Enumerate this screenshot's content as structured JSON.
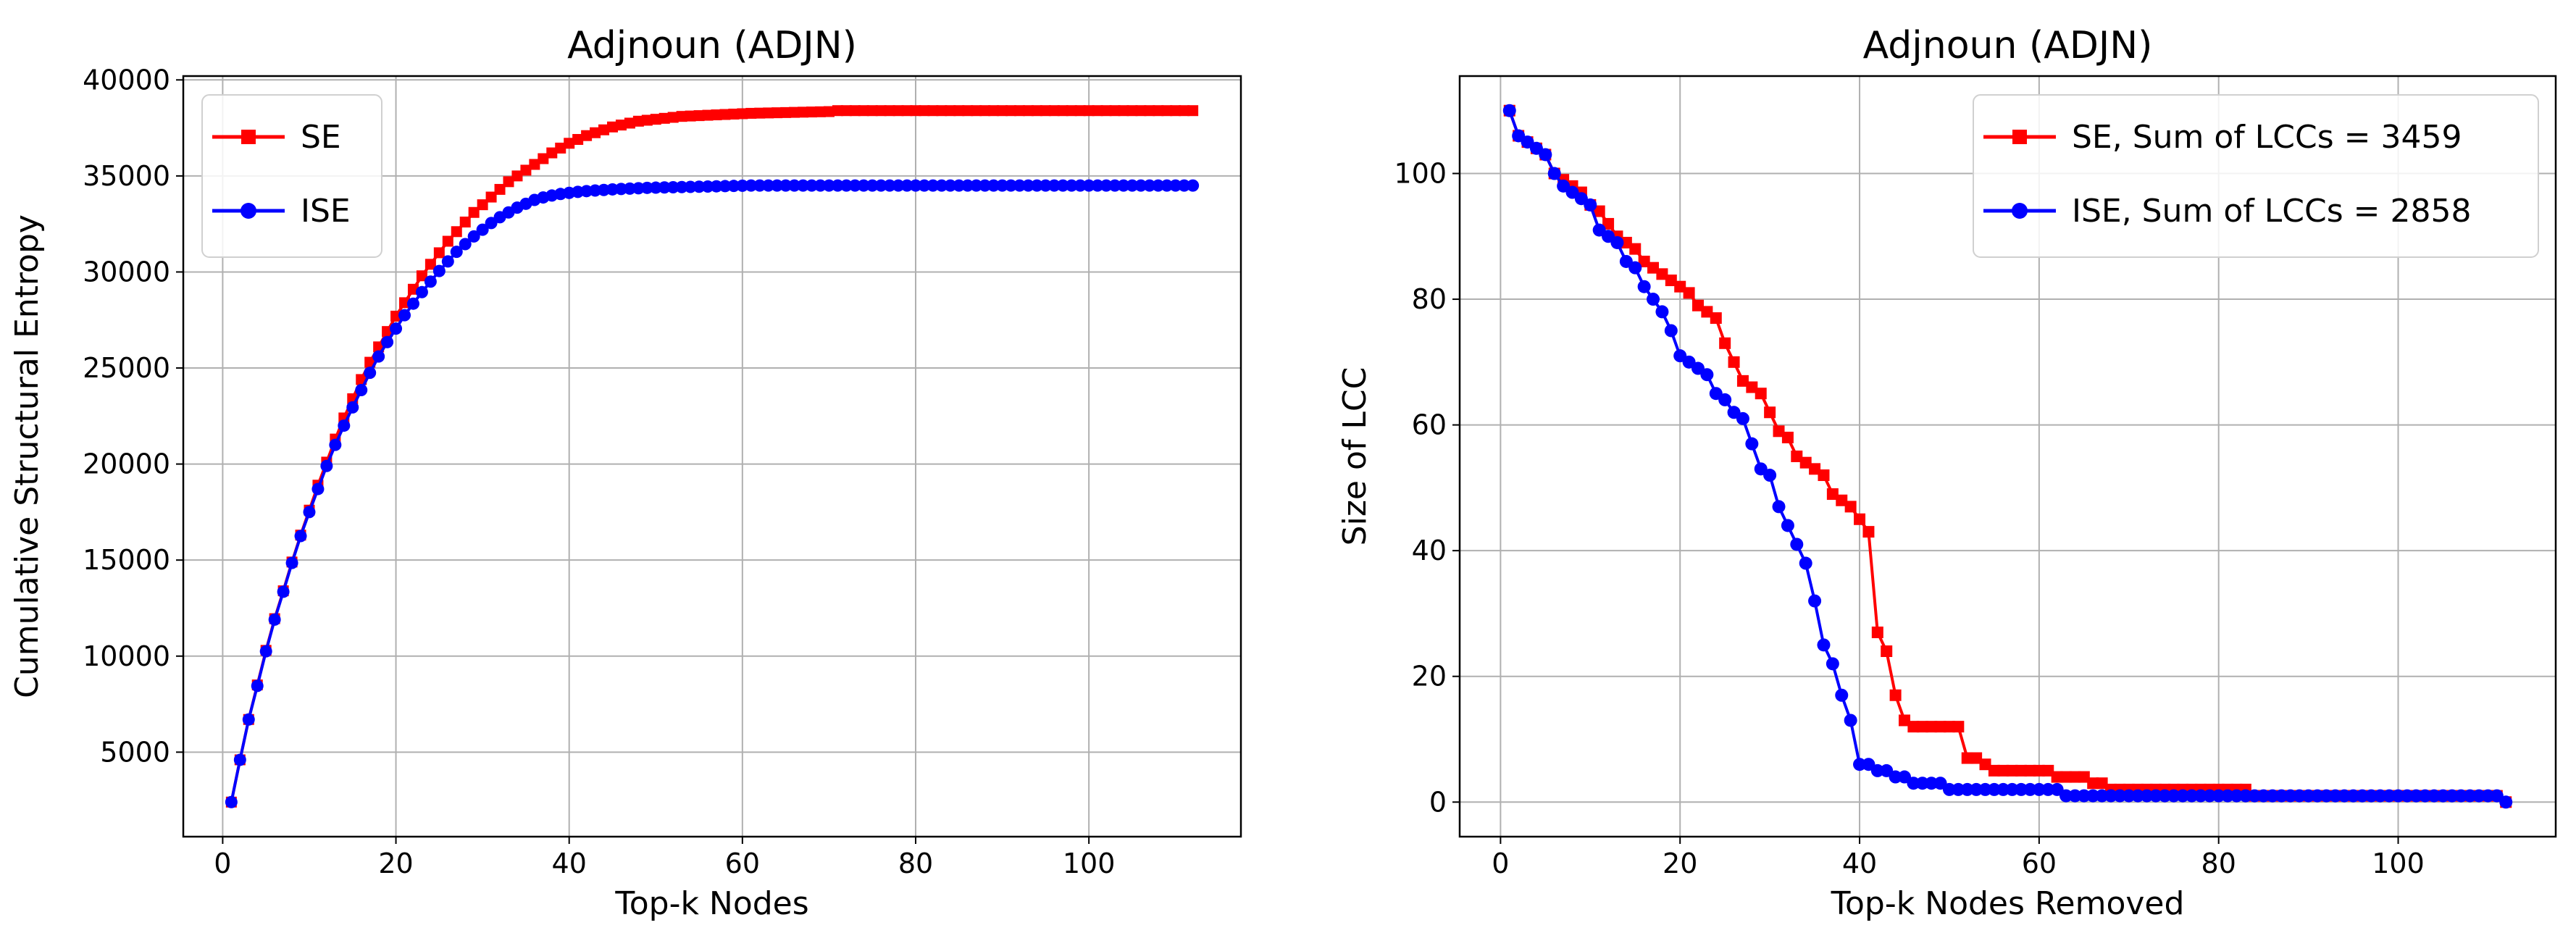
{
  "chart_data": [
    {
      "type": "line",
      "title": "Adjnoun (ADJN)",
      "xlabel": "Top-k Nodes",
      "ylabel": "Cumulative Structural Entropy",
      "xlim": [
        -4.55,
        117.55
      ],
      "ylim": [
        600,
        40200
      ],
      "xticks": [
        0,
        20,
        40,
        60,
        80,
        100
      ],
      "yticks": [
        5000,
        10000,
        15000,
        20000,
        25000,
        30000,
        35000,
        40000
      ],
      "grid": true,
      "legend_placement": "upper-left",
      "x_start": 1,
      "series": [
        {
          "name": "SE",
          "color": "#ff0000",
          "marker": "square",
          "values": [
            2400,
            4600,
            6700,
            8500,
            10300,
            11950,
            13400,
            14900,
            16300,
            17600,
            18900,
            20100,
            21300,
            22400,
            23400,
            24400,
            25300,
            26100,
            26900,
            27700,
            28400,
            29100,
            29800,
            30400,
            31000,
            31600,
            32100,
            32600,
            33100,
            33500,
            33900,
            34300,
            34700,
            35000,
            35300,
            35600,
            35900,
            36200,
            36450,
            36700,
            36900,
            37100,
            37250,
            37400,
            37550,
            37650,
            37750,
            37850,
            37900,
            37950,
            38000,
            38050,
            38100,
            38120,
            38140,
            38160,
            38180,
            38200,
            38220,
            38240,
            38260,
            38270,
            38280,
            38290,
            38300,
            38310,
            38320,
            38330,
            38340,
            38350,
            38400,
            38400,
            38400,
            38400,
            38400,
            38400,
            38400,
            38400,
            38400,
            38400,
            38400,
            38400,
            38400,
            38400,
            38400,
            38400,
            38400,
            38400,
            38400,
            38400,
            38400,
            38400,
            38400,
            38400,
            38400,
            38400,
            38400,
            38400,
            38400,
            38400,
            38400,
            38400,
            38400,
            38400,
            38400,
            38400,
            38400,
            38400,
            38400,
            38400,
            38400,
            38400
          ]
        },
        {
          "name": "ISE",
          "color": "#0000ff",
          "marker": "circle",
          "values": [
            2400,
            4600,
            6700,
            8450,
            10250,
            11900,
            13350,
            14850,
            16250,
            17500,
            18700,
            19900,
            21000,
            22000,
            22950,
            23850,
            24750,
            25600,
            26350,
            27050,
            27750,
            28350,
            28950,
            29500,
            30050,
            30550,
            31050,
            31450,
            31850,
            32200,
            32550,
            32850,
            33100,
            33350,
            33550,
            33750,
            33880,
            33980,
            34060,
            34120,
            34170,
            34210,
            34240,
            34270,
            34300,
            34320,
            34340,
            34360,
            34380,
            34390,
            34400,
            34410,
            34420,
            34430,
            34440,
            34450,
            34460,
            34470,
            34480,
            34490,
            34500,
            34500,
            34500,
            34500,
            34500,
            34500,
            34500,
            34500,
            34500,
            34500,
            34500,
            34500,
            34500,
            34500,
            34500,
            34500,
            34500,
            34500,
            34500,
            34500,
            34500,
            34500,
            34500,
            34500,
            34500,
            34500,
            34500,
            34500,
            34500,
            34500,
            34500,
            34500,
            34500,
            34500,
            34500,
            34500,
            34500,
            34500,
            34500,
            34500,
            34500,
            34500,
            34500,
            34500,
            34500,
            34500,
            34500,
            34500,
            34500,
            34500,
            34500,
            34500
          ]
        }
      ]
    },
    {
      "type": "line",
      "title": "Adjnoun (ADJN)",
      "xlabel": "Top-k Nodes Removed",
      "ylabel": "Size of LCC",
      "xlim": [
        -4.55,
        117.55
      ],
      "ylim": [
        -5.5,
        115.5
      ],
      "xticks": [
        0,
        20,
        40,
        60,
        80,
        100
      ],
      "yticks": [
        0,
        20,
        40,
        60,
        80,
        100
      ],
      "grid": true,
      "legend_placement": "upper-right",
      "x_start": 1,
      "series": [
        {
          "name": "SE,  Sum of LCCs = 3459",
          "color": "#ff0000",
          "marker": "square",
          "values": [
            110,
            106,
            105,
            104,
            103,
            100,
            99,
            98,
            97,
            95,
            94,
            92,
            90,
            89,
            88,
            86,
            85,
            84,
            83,
            82,
            81,
            79,
            78,
            77,
            73,
            70,
            67,
            66,
            65,
            62,
            59,
            58,
            55,
            54,
            53,
            52,
            49,
            48,
            47,
            45,
            43,
            27,
            24,
            17,
            13,
            12,
            12,
            12,
            12,
            12,
            12,
            7,
            7,
            6,
            5,
            5,
            5,
            5,
            5,
            5,
            5,
            4,
            4,
            4,
            4,
            3,
            3,
            2,
            2,
            2,
            2,
            2,
            2,
            2,
            2,
            2,
            2,
            2,
            2,
            2,
            2,
            2,
            2,
            1,
            1,
            1,
            1,
            1,
            1,
            1,
            1,
            1,
            1,
            1,
            1,
            1,
            1,
            1,
            1,
            1,
            1,
            1,
            1,
            1,
            1,
            1,
            1,
            1,
            1,
            1,
            1,
            0
          ]
        },
        {
          "name": "ISE, Sum of LCCs = 2858",
          "color": "#0000ff",
          "marker": "circle",
          "values": [
            110,
            106,
            105,
            104,
            103,
            100,
            98,
            97,
            96,
            95,
            91,
            90,
            89,
            86,
            85,
            82,
            80,
            78,
            75,
            71,
            70,
            69,
            68,
            65,
            64,
            62,
            61,
            57,
            53,
            52,
            47,
            44,
            41,
            38,
            32,
            25,
            22,
            17,
            13,
            6,
            6,
            5,
            5,
            4,
            4,
            3,
            3,
            3,
            3,
            2,
            2,
            2,
            2,
            2,
            2,
            2,
            2,
            2,
            2,
            2,
            2,
            2,
            1,
            1,
            1,
            1,
            1,
            1,
            1,
            1,
            1,
            1,
            1,
            1,
            1,
            1,
            1,
            1,
            1,
            1,
            1,
            1,
            1,
            1,
            1,
            1,
            1,
            1,
            1,
            1,
            1,
            1,
            1,
            1,
            1,
            1,
            1,
            1,
            1,
            1,
            1,
            1,
            1,
            1,
            1,
            1,
            1,
            1,
            1,
            1,
            1,
            0
          ]
        }
      ]
    }
  ]
}
